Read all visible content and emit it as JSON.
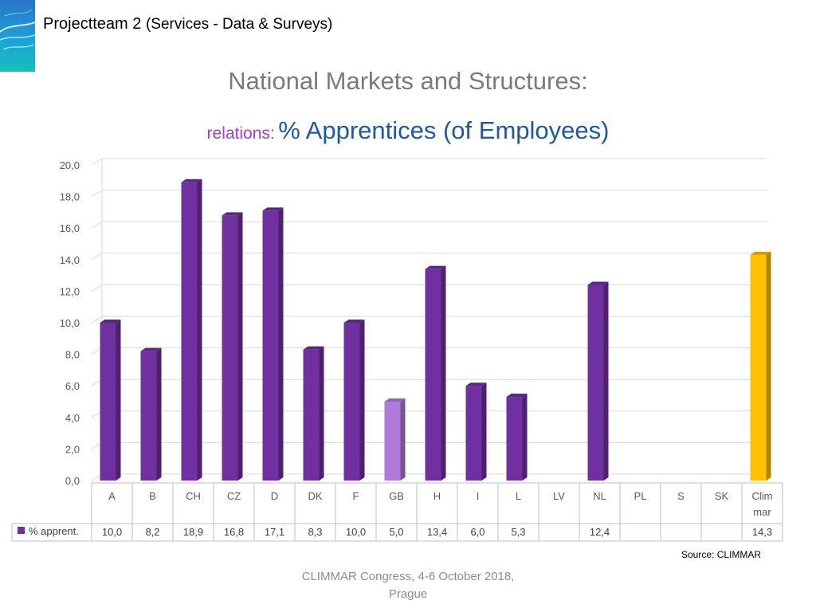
{
  "header": {
    "title": "Projectteam 2",
    "subtitle": "(Services - Data & Surveys)"
  },
  "chart_data": {
    "type": "bar",
    "title": "National Markets and Structures:",
    "subtitle_prefix": "relations:",
    "subtitle": "% Apprentices (of Employees)",
    "categories": [
      "A",
      "B",
      "CH",
      "CZ",
      "D",
      "DK",
      "F",
      "GB",
      "H",
      "I",
      "L",
      "LV",
      "NL",
      "PL",
      "S",
      "SK",
      "Clim mar"
    ],
    "series": [
      {
        "name": "% apprent.",
        "values": [
          10.0,
          8.2,
          18.9,
          16.8,
          17.1,
          8.3,
          10.0,
          5.0,
          13.4,
          6.0,
          5.3,
          null,
          12.4,
          null,
          null,
          null,
          14.3
        ],
        "labels": [
          "10,0",
          "8,2",
          "18,9",
          "16,8",
          "17,1",
          "8,3",
          "10,0",
          "5,0",
          "13,4",
          "6,0",
          "5,3",
          "",
          "12,4",
          "",
          "",
          "",
          "14,3"
        ]
      }
    ],
    "y_ticks": [
      "0,0",
      "2,0",
      "4,0",
      "6,0",
      "8,0",
      "10,0",
      "12,0",
      "14,0",
      "16,0",
      "18,0",
      "20,0"
    ],
    "ylim": [
      0,
      20
    ],
    "grid": true,
    "legend": "data-table",
    "colors": {
      "default": "#7030a0",
      "GB": "#b07ad9",
      "Clim mar": "#ffc000",
      "legend_key": "#7030a0"
    }
  },
  "source": "Source: CLIMMAR",
  "footer": {
    "line1": "CLIMMAR Congress, 4-6 October 2018,",
    "line2": "Prague"
  }
}
